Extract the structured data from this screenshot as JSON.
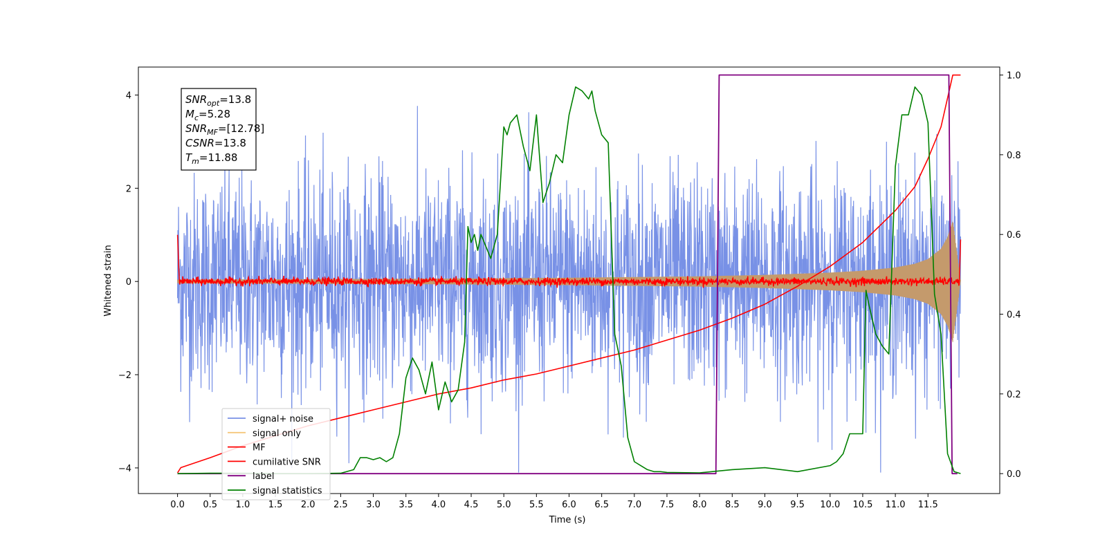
{
  "chart_data": {
    "type": "line",
    "title": "",
    "xlabel": "Time (s)",
    "ylabel": "Whitened strain",
    "xlim": [
      -0.6,
      12.6
    ],
    "ylim": [
      -4.55,
      4.6
    ],
    "y2lim": [
      -0.05,
      1.02
    ],
    "x_ticks": [
      0.0,
      0.5,
      1.0,
      1.5,
      2.0,
      2.5,
      3.0,
      3.5,
      4.0,
      4.5,
      5.0,
      5.5,
      6.0,
      6.5,
      7.0,
      7.5,
      8.0,
      8.5,
      9.0,
      9.5,
      10.0,
      10.5,
      11.0,
      11.5
    ],
    "x_tick_labels": [
      "0.0",
      "0.5",
      "1.0",
      "1.5",
      "2.0",
      "2.5",
      "3.0",
      "3.5",
      "4.0",
      "4.5",
      "5.0",
      "5.5",
      "6.0",
      "6.5",
      "7.0",
      "7.5",
      "8.0",
      "8.5",
      "9.0",
      "9.5",
      "10.0",
      "10.5",
      "11.0",
      "11.5"
    ],
    "y_ticks": [
      -4,
      -2,
      0,
      2,
      4
    ],
    "y_tick_labels": [
      "−4",
      "−2",
      "0",
      "2",
      "4"
    ],
    "y2_ticks": [
      0.0,
      0.2,
      0.4,
      0.6,
      0.8,
      1.0
    ],
    "y2_tick_labels": [
      "0.0",
      "0.2",
      "0.4",
      "0.6",
      "0.8",
      "1.0"
    ],
    "grid": false,
    "legend_position": "lower-left",
    "legend": [
      {
        "label": "signal+ noise",
        "color": "#7891e6"
      },
      {
        "label": "signal only",
        "color": "#f5c77a"
      },
      {
        "label": "MF",
        "color": "#ff0000"
      },
      {
        "label": "cumilative SNR",
        "color": "#ff0000"
      },
      {
        "label": "label",
        "color": "#800080"
      },
      {
        "label": "signal statistics",
        "color": "#008000"
      }
    ],
    "annotation": {
      "lines": [
        {
          "var": "SNR",
          "sub": "opt",
          "value": "=13.8"
        },
        {
          "var": "M",
          "sub": "c",
          "value": "=5.28"
        },
        {
          "var": "SNR",
          "sub": "MF",
          "value": "=[12.78]"
        },
        {
          "var": "CSNR",
          "sub": "",
          "value": "=13.8"
        },
        {
          "var": "T",
          "sub": "m",
          "value": "=11.88"
        }
      ]
    },
    "series": [
      {
        "name": "signal+ noise",
        "axis": "left",
        "kind": "noise_band",
        "x_range": [
          0.0,
          12.0
        ],
        "approx_upper": 2.5,
        "approx_lower": -2.5,
        "peak_max": 4.2,
        "peak_min": -4.1
      },
      {
        "name": "signal only",
        "axis": "left",
        "kind": "chirp_envelope",
        "x": [
          0.0,
          2.0,
          4.0,
          6.0,
          8.0,
          9.0,
          10.0,
          10.5,
          11.0,
          11.3,
          11.5,
          11.7,
          11.8,
          11.88,
          12.0
        ],
        "amplitude": [
          0.04,
          0.05,
          0.06,
          0.08,
          0.11,
          0.14,
          0.19,
          0.23,
          0.3,
          0.38,
          0.48,
          0.7,
          0.95,
          1.3,
          0.0
        ]
      },
      {
        "name": "MF",
        "axis": "left",
        "kind": "noisy_flat",
        "x_range": [
          0.0,
          12.0
        ],
        "level": 0.0,
        "spread": 0.09,
        "start_value": 1.0,
        "end_value": 0.9
      },
      {
        "name": "cumilative SNR",
        "axis": "right",
        "x": [
          0.0,
          0.05,
          0.5,
          1.0,
          1.5,
          2.0,
          2.5,
          3.0,
          3.5,
          4.0,
          4.5,
          5.0,
          5.5,
          6.0,
          6.5,
          7.0,
          7.5,
          8.0,
          8.5,
          9.0,
          9.5,
          10.0,
          10.5,
          11.0,
          11.3,
          11.5,
          11.7,
          11.88,
          12.0
        ],
        "y": [
          0.002,
          0.015,
          0.04,
          0.07,
          0.095,
          0.12,
          0.14,
          0.16,
          0.18,
          0.2,
          0.215,
          0.235,
          0.25,
          0.27,
          0.29,
          0.31,
          0.335,
          0.36,
          0.39,
          0.425,
          0.47,
          0.52,
          0.58,
          0.66,
          0.72,
          0.79,
          0.87,
          1.0,
          1.0
        ]
      },
      {
        "name": "label",
        "axis": "right",
        "x": [
          0.0,
          8.25,
          8.3,
          11.82,
          11.87,
          11.95
        ],
        "y": [
          0.0,
          0.0,
          1.0,
          1.0,
          0.0,
          0.0
        ]
      },
      {
        "name": "signal statistics",
        "axis": "right",
        "x": [
          0.0,
          0.5,
          1.0,
          1.5,
          2.0,
          2.5,
          2.7,
          2.8,
          2.9,
          3.0,
          3.1,
          3.2,
          3.3,
          3.4,
          3.5,
          3.6,
          3.7,
          3.8,
          3.9,
          4.0,
          4.1,
          4.2,
          4.3,
          4.4,
          4.45,
          4.5,
          4.55,
          4.6,
          4.65,
          4.7,
          4.8,
          4.9,
          5.0,
          5.05,
          5.1,
          5.2,
          5.3,
          5.4,
          5.5,
          5.6,
          5.7,
          5.8,
          5.9,
          6.0,
          6.1,
          6.2,
          6.3,
          6.35,
          6.4,
          6.5,
          6.6,
          6.7,
          6.8,
          6.9,
          7.0,
          7.1,
          7.2,
          7.3,
          7.4,
          7.5,
          8.0,
          8.5,
          9.0,
          9.5,
          10.0,
          10.1,
          10.2,
          10.3,
          10.4,
          10.5,
          10.55,
          10.6,
          10.7,
          10.8,
          10.9,
          11.0,
          11.1,
          11.2,
          11.3,
          11.4,
          11.5,
          11.6,
          11.7,
          11.8,
          11.9,
          12.0
        ],
        "y": [
          0.0,
          0.001,
          0.001,
          0.0,
          0.0,
          0.001,
          0.01,
          0.04,
          0.04,
          0.035,
          0.04,
          0.03,
          0.04,
          0.1,
          0.24,
          0.29,
          0.26,
          0.2,
          0.28,
          0.16,
          0.23,
          0.18,
          0.21,
          0.33,
          0.62,
          0.58,
          0.6,
          0.56,
          0.6,
          0.58,
          0.54,
          0.6,
          0.87,
          0.85,
          0.88,
          0.9,
          0.82,
          0.76,
          0.9,
          0.68,
          0.73,
          0.8,
          0.78,
          0.9,
          0.97,
          0.96,
          0.94,
          0.96,
          0.91,
          0.85,
          0.83,
          0.35,
          0.27,
          0.09,
          0.03,
          0.02,
          0.01,
          0.005,
          0.005,
          0.003,
          0.002,
          0.01,
          0.015,
          0.005,
          0.02,
          0.03,
          0.05,
          0.1,
          0.1,
          0.1,
          0.46,
          0.42,
          0.35,
          0.32,
          0.3,
          0.77,
          0.9,
          0.9,
          0.97,
          0.95,
          0.88,
          0.45,
          0.35,
          0.05,
          0.005,
          0.0
        ]
      }
    ]
  }
}
